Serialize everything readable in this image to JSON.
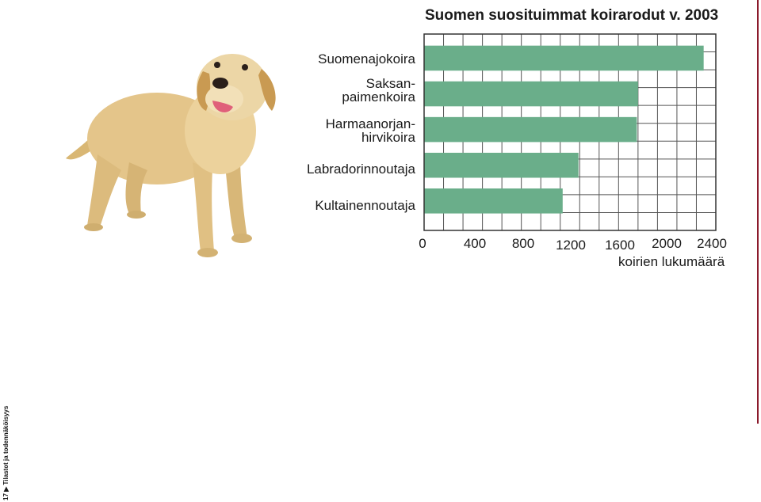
{
  "page": {
    "sidebar_page": "17",
    "sidebar_arrow": "▶",
    "sidebar_section": "Tilastot ja todennäköisyys",
    "accent_rule_color": "#8b1a2b"
  },
  "chart_data": {
    "type": "bar",
    "orientation": "horizontal",
    "title": "Suomen suosituimmat koirarodut v. 2003",
    "categories": [
      "Suomenajokoira",
      "Saksan-\npaimenkoira",
      "Harmaanorjan-\nhirvikoira",
      "Labradorinnoutaja",
      "Kultainennoutaja"
    ],
    "values": [
      2300,
      1760,
      1750,
      1270,
      1140
    ],
    "xlabel": "koirien lukumäärä",
    "ylabel": "",
    "xlim": [
      0,
      2400
    ],
    "xticks": [
      "0",
      "400",
      "800",
      "1200",
      "1600",
      "2000",
      "2400"
    ],
    "grid": true,
    "bar_color": "#6aae8a",
    "grid_color": "#555555"
  },
  "image": {
    "icon": "dog-icon"
  }
}
